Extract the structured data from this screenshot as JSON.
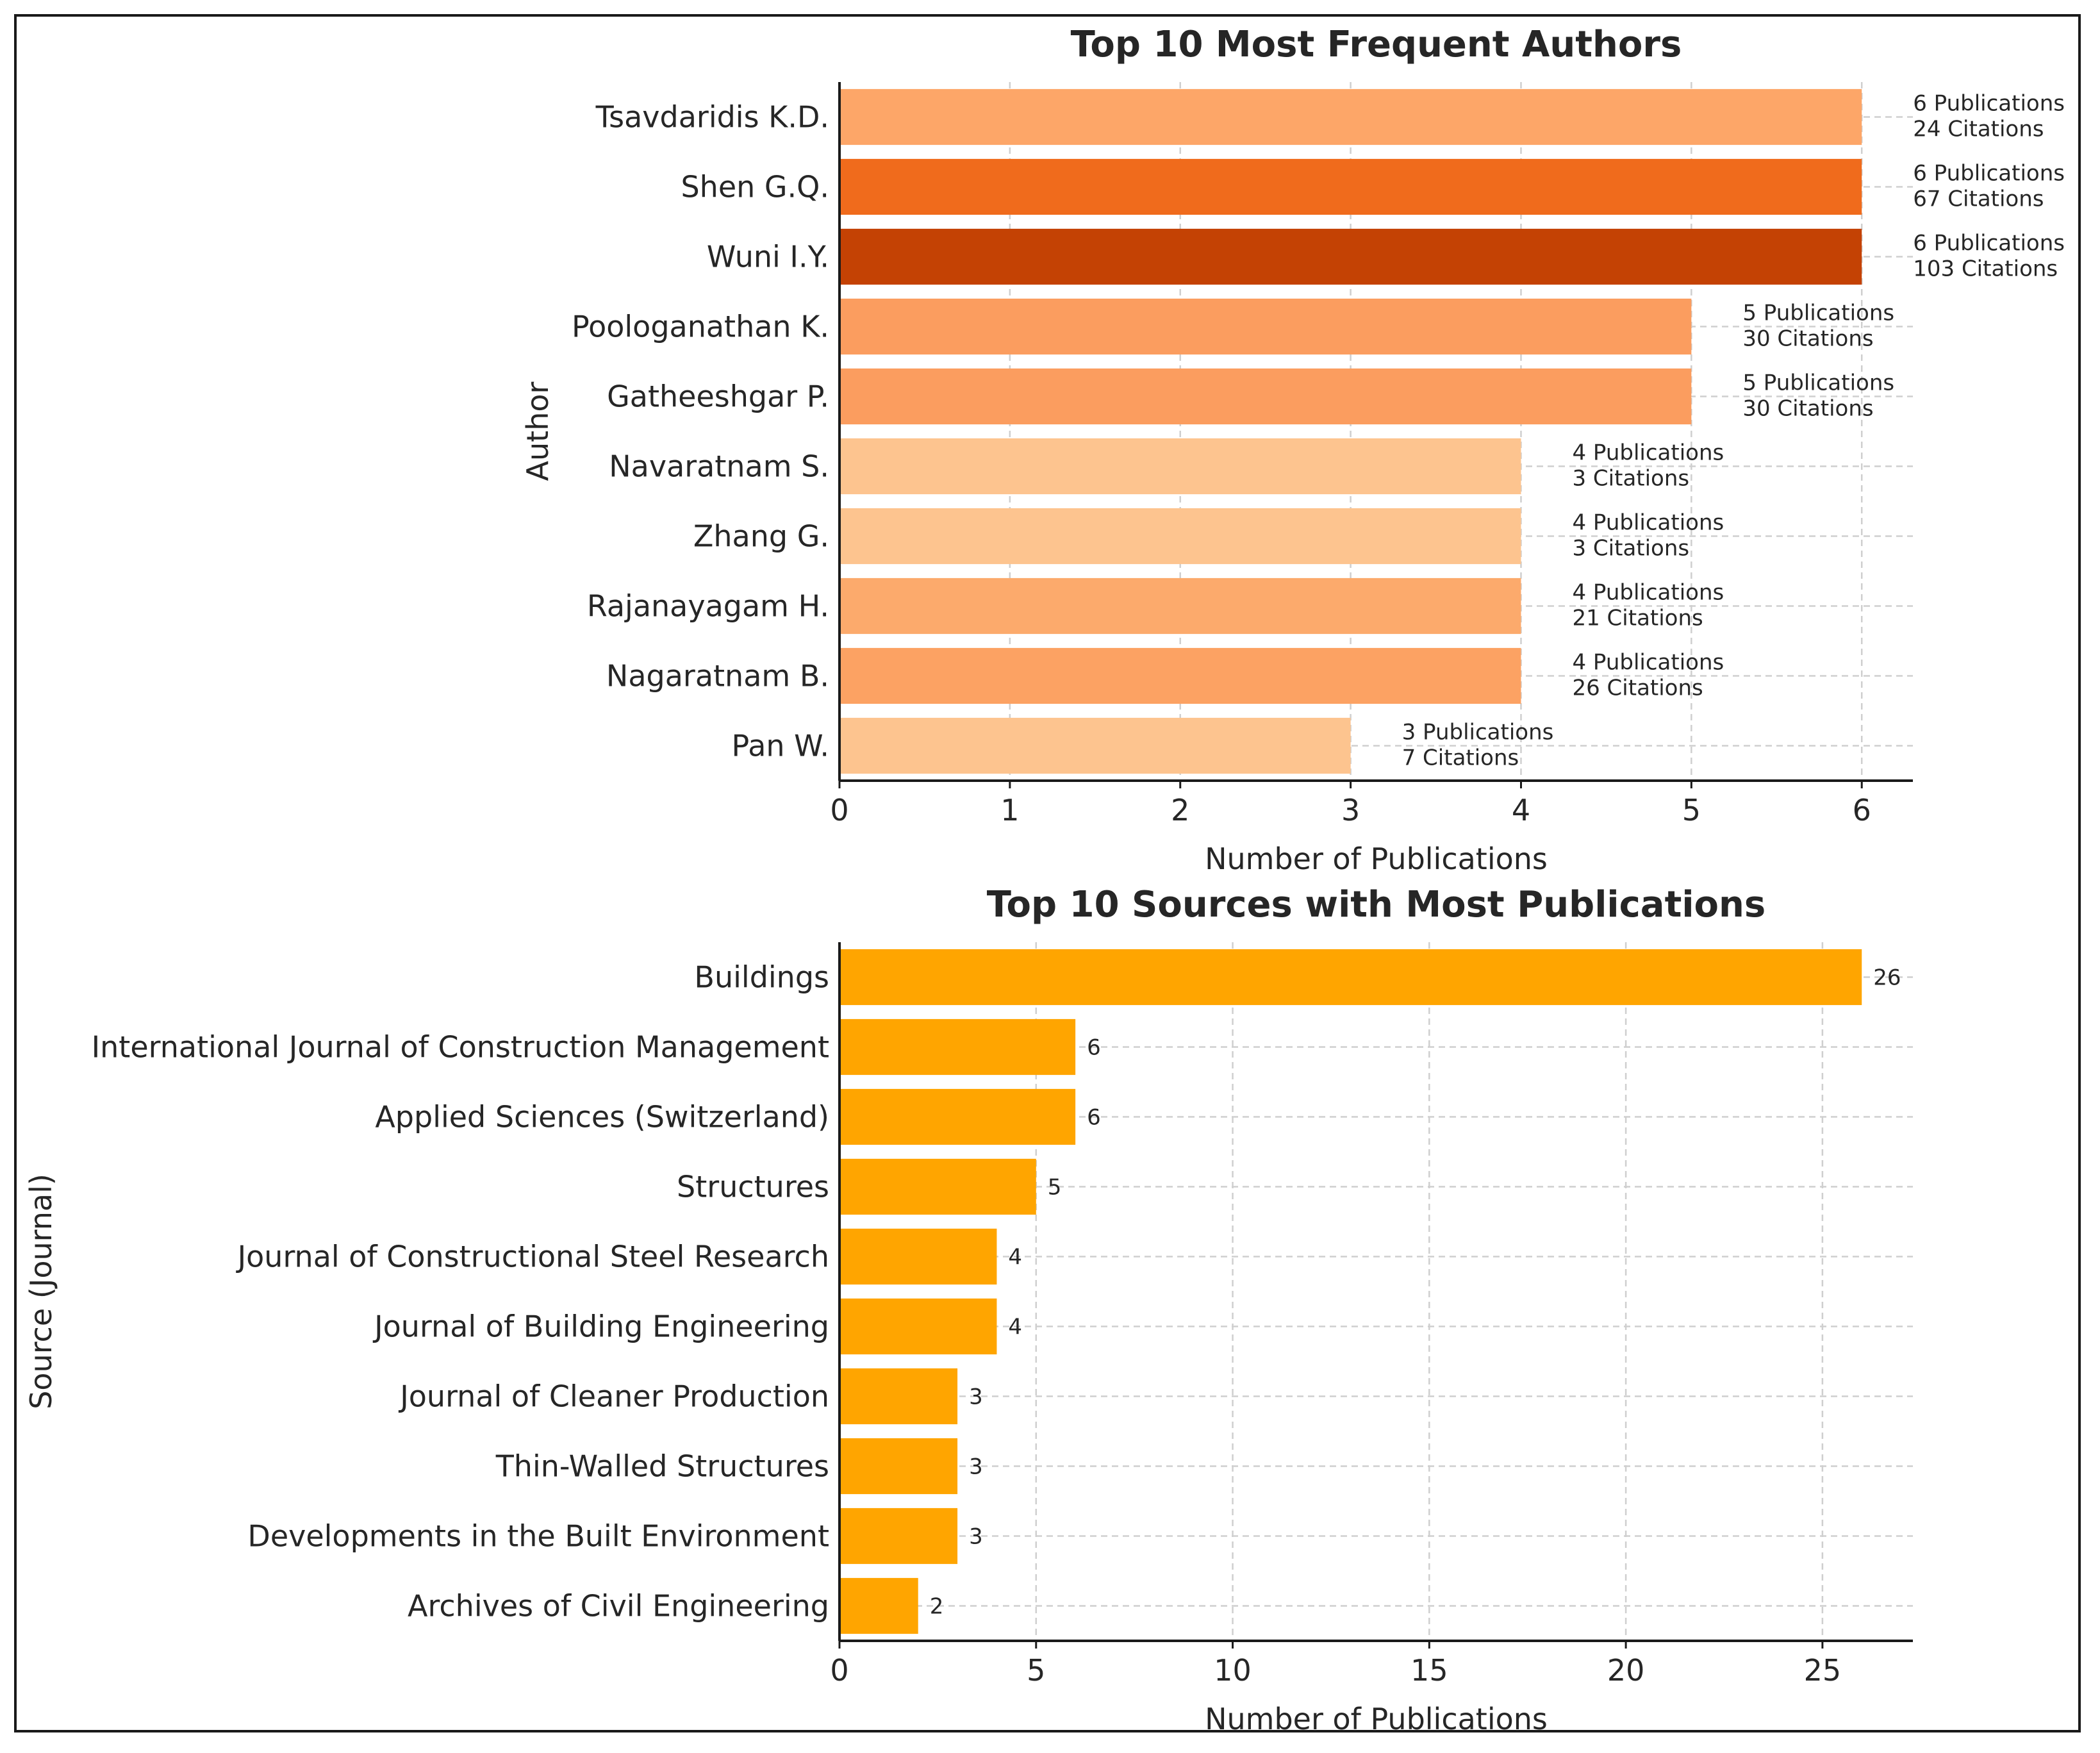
{
  "chart_data": [
    {
      "type": "bar",
      "orientation": "horizontal",
      "title": "Top 10 Most Frequent Authors",
      "xlabel": "Number of Publications",
      "ylabel": "Author",
      "xlim": [
        0,
        6.3
      ],
      "xticks": [
        0,
        1,
        2,
        3,
        4,
        5,
        6
      ],
      "grid": true,
      "categories": [
        "Tsavdaridis K.D.",
        "Shen G.Q.",
        "Wuni I.Y.",
        "Poologanathan K.",
        "Gatheeshgar P.",
        "Navaratnam S.",
        "Zhang G.",
        "Rajanayagam H.",
        "Nagaratnam B.",
        "Pan W."
      ],
      "values": [
        6,
        6,
        6,
        5,
        5,
        4,
        4,
        4,
        4,
        3
      ],
      "citations": [
        24,
        67,
        103,
        30,
        30,
        3,
        3,
        21,
        26,
        7
      ],
      "colors": [
        "#fda668",
        "#f06b1c",
        "#c44204",
        "#fb9d5f",
        "#fb9d5f",
        "#fdc48f",
        "#fdc48f",
        "#fcaa6c",
        "#fca263",
        "#fdc48f"
      ],
      "annotation_lines": [
        [
          "6 Publications",
          "24 Citations"
        ],
        [
          "6 Publications",
          "67 Citations"
        ],
        [
          "6 Publications",
          "103 Citations"
        ],
        [
          "5 Publications",
          "30 Citations"
        ],
        [
          "5 Publications",
          "30 Citations"
        ],
        [
          "4 Publications",
          "3 Citations"
        ],
        [
          "4 Publications",
          "3 Citations"
        ],
        [
          "4 Publications",
          "21 Citations"
        ],
        [
          "4 Publications",
          "26 Citations"
        ],
        [
          "3 Publications",
          "7 Citations"
        ]
      ]
    },
    {
      "type": "bar",
      "orientation": "horizontal",
      "title": "Top 10 Sources with Most Publications",
      "xlabel": "Number of Publications",
      "ylabel": "Source (Journal)",
      "xlim": [
        0,
        27.3
      ],
      "xticks": [
        0,
        5,
        10,
        15,
        20,
        25
      ],
      "grid": true,
      "categories": [
        "Buildings",
        "International Journal of Construction Management",
        "Applied Sciences (Switzerland)",
        "Structures",
        "Journal of Constructional Steel Research",
        "Journal of Building Engineering",
        "Journal of Cleaner Production",
        "Thin-Walled Structures",
        "Developments in the Built Environment",
        "Archives of Civil Engineering"
      ],
      "values": [
        26,
        6,
        6,
        5,
        4,
        4,
        3,
        3,
        3,
        2
      ],
      "colors": [
        "#ffa500",
        "#ffa500",
        "#ffa500",
        "#ffa500",
        "#ffa500",
        "#ffa500",
        "#ffa500",
        "#ffa500",
        "#ffa500",
        "#ffa500"
      ]
    }
  ]
}
